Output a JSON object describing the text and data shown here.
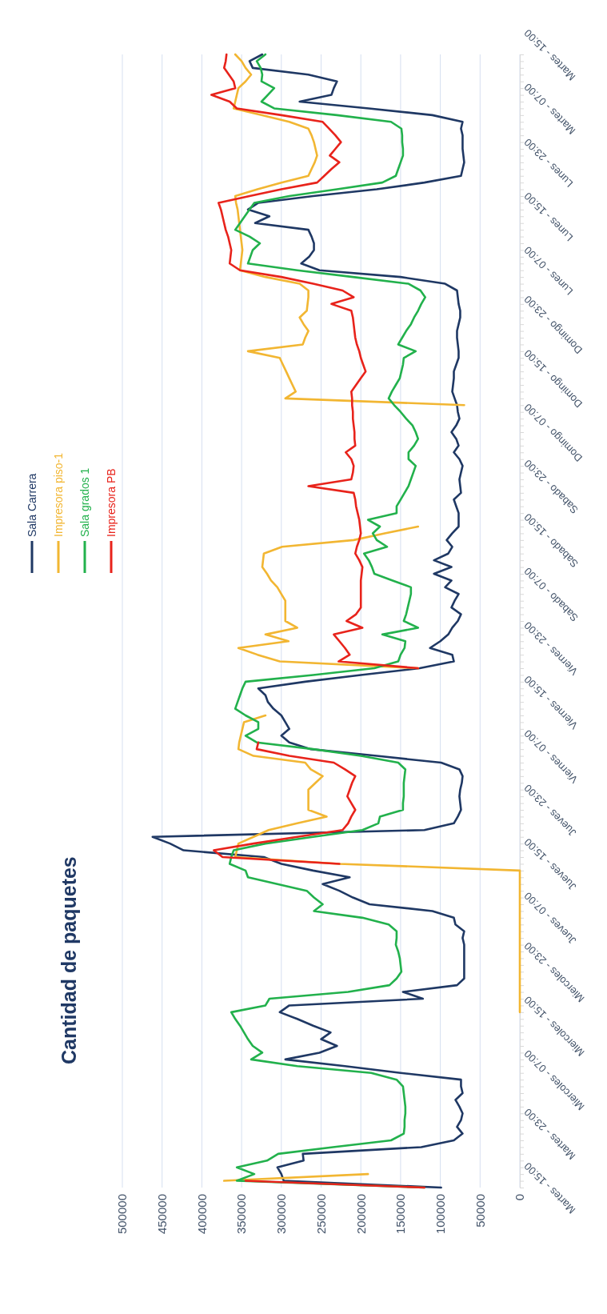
{
  "chart_data": {
    "type": "line",
    "orientation": "horizontal",
    "title": "Cantidad de paquetes",
    "legend": "left",
    "grid": "x",
    "xlim": [
      500000,
      0
    ],
    "xticks": [
      0,
      50000,
      100000,
      150000,
      200000,
      250000,
      300000,
      350000,
      400000,
      450000,
      500000
    ],
    "categories": [
      "Martes - 15:00",
      null,
      null,
      null,
      null,
      null,
      null,
      null,
      "Martes - 07:00",
      null,
      null,
      null,
      null,
      null,
      null,
      null,
      "Lunes - 23:00",
      null,
      null,
      null,
      null,
      null,
      null,
      null,
      "Lunes - 15:00",
      null,
      null,
      null,
      null,
      null,
      null,
      null,
      "Lunes - 07:00",
      null,
      null,
      null,
      null,
      null,
      null,
      null,
      "Domingo - 23:00",
      null,
      null,
      null,
      null,
      null,
      null,
      null,
      "Domingo - 15:00",
      null,
      null,
      null,
      null,
      null,
      null,
      null,
      "Domingo - 07:00",
      null,
      null,
      null,
      null,
      null,
      null,
      null,
      "Sabado - 23:00",
      null,
      null,
      null,
      null,
      null,
      null,
      null,
      "Sabado - 15:00",
      null,
      null,
      null,
      null,
      null,
      null,
      null,
      "Sabado - 07:00",
      null,
      null,
      null,
      null,
      null,
      null,
      null,
      "Viernes - 23:00",
      null,
      null,
      null,
      null,
      null,
      null,
      null,
      "Viernes - 15:00",
      null,
      null,
      null,
      null,
      null,
      null,
      null,
      "Viernes - 07:00",
      null,
      null,
      null,
      null,
      null,
      null,
      null,
      "Jueves - 23:00",
      null,
      null,
      null,
      null,
      null,
      null,
      null,
      "Jueves - 15:00",
      null,
      null,
      null,
      null,
      null,
      null,
      null,
      "Jueves - 07:00",
      null,
      null,
      null,
      null,
      null,
      null,
      null,
      "Miercoles - 23:00",
      null,
      null,
      null,
      null,
      null,
      null,
      null,
      "Miercoles - 15:00",
      null,
      null,
      null,
      null,
      null,
      null,
      null,
      "Miercoles - 07:00",
      null,
      null,
      null,
      null,
      null,
      null,
      null,
      "Martes - 23:00",
      null,
      null,
      null,
      null,
      null,
      null,
      null,
      "Martes - 15:00"
    ],
    "series": [
      {
        "name": "Sala Carrera",
        "color": "#1f3864",
        "values": [
          324000,
          340000,
          336000,
          266000,
          230000,
          234000,
          237000,
          277000,
          190000,
          110000,
          72000,
          74000,
          72000,
          72000,
          72000,
          71000,
          70000,
          72000,
          74000,
          120000,
          180000,
          260000,
          329000,
          342000,
          315000,
          333000,
          266000,
          262000,
          259000,
          259000,
          265000,
          275000,
          252000,
          150000,
          94000,
          79000,
          78000,
          77000,
          75000,
          75000,
          77000,
          79000,
          79000,
          78000,
          77000,
          77000,
          80000,
          83000,
          83000,
          84000,
          85000,
          82000,
          79000,
          78000,
          76000,
          80000,
          86000,
          80000,
          77000,
          83000,
          76000,
          72000,
          74000,
          76000,
          75000,
          74000,
          83000,
          80000,
          77000,
          77000,
          77000,
          85000,
          92000,
          85000,
          90000,
          108000,
          86000,
          108000,
          86000,
          94000,
          77000,
          82000,
          86000,
          74000,
          78000,
          85000,
          90000,
          100000,
          113000,
          85000,
          83000,
          126000,
          200000,
          270000,
          329000,
          320000,
          317000,
          310000,
          300000,
          295000,
          290000,
          300000,
          290000,
          263000,
          180000,
          99000,
          76000,
          72000,
          73000,
          75000,
          76000,
          75000,
          74000,
          78000,
          83000,
          120000,
          462000,
          440000,
          423000,
          322000,
          300000,
          260000,
          214000,
          248000,
          227000,
          210000,
          189000,
          110000,
          83000,
          81000,
          70000,
          72000,
          70000,
          70000,
          70000,
          70000,
          70000,
          70000,
          79000,
          147000,
          122000,
          290000,
          302000,
          280000,
          260000,
          238000,
          250000,
          230000,
          252000,
          295000,
          220000,
          150000,
          74000,
          74000,
          72000,
          81000,
          76000,
          72000,
          74000,
          79000,
          72000,
          83000,
          124000,
          273000,
          272000,
          305000,
          300000,
          297000,
          99000
        ]
      },
      {
        "name": "Impresora piso-1",
        "color": "#f2b632",
        "values": [
          358000,
          350000,
          345000,
          338000,
          345000,
          354000,
          356000,
          358000,
          360000,
          325000,
          290000,
          266000,
          262000,
          259000,
          257000,
          255000,
          258000,
          262000,
          266000,
          300000,
          330000,
          358000,
          357000,
          355000,
          354000,
          353000,
          352000,
          351000,
          350000,
          349000,
          350000,
          351000,
          352000,
          320000,
          277000,
          266000,
          266000,
          267000,
          268000,
          277000,
          272000,
          266000,
          270000,
          273000,
          342000,
          302000,
          298000,
          294000,
          290000,
          286000,
          282000,
          295000,
          70000,
          null,
          null,
          null,
          null,
          null,
          null,
          null,
          null,
          null,
          null,
          null,
          null,
          null,
          null,
          null,
          null,
          null,
          128000,
          170000,
          209000,
          299000,
          322000,
          323000,
          324000,
          318000,
          313000,
          305000,
          300000,
          295000,
          295000,
          295000,
          295000,
          280000,
          320000,
          291000,
          354000,
          330000,
          302000,
          128000,
          null,
          null,
          null,
          null,
          null,
          null,
          320000,
          347000,
          349000,
          351000,
          353000,
          354000,
          335000,
          270000,
          263000,
          248000,
          257000,
          266000,
          266000,
          266000,
          266000,
          243000,
          280000,
          316000,
          335000,
          354000,
          356000,
          358000,
          227000,
          0,
          0,
          0,
          0,
          0,
          0,
          0,
          0,
          0,
          0,
          0,
          0,
          0,
          0,
          0,
          0,
          0,
          0,
          0,
          0,
          0,
          0,
          null,
          null,
          null,
          null,
          null,
          null,
          null,
          null,
          null,
          null,
          null,
          null,
          null,
          null,
          null,
          null,
          null,
          null,
          null,
          null,
          null,
          null,
          null,
          191000,
          372000,
          null
        ]
      },
      {
        "name": "Sala grados 1",
        "color": "#22b14c",
        "values": [
          320000,
          331000,
          326000,
          324000,
          325000,
          309000,
          317000,
          325000,
          309000,
          230000,
          162000,
          149000,
          148000,
          148000,
          147000,
          147000,
          150000,
          153000,
          156000,
          173000,
          230000,
          290000,
          334000,
          340000,
          346000,
          352000,
          358000,
          340000,
          327000,
          336000,
          339000,
          342000,
          280000,
          210000,
          140000,
          125000,
          119000,
          124000,
          128000,
          133000,
          137000,
          143000,
          148000,
          153000,
          131000,
          146000,
          147000,
          149000,
          151000,
          156000,
          161000,
          165000,
          158000,
          150000,
          143000,
          135000,
          131000,
          128000,
          133000,
          140000,
          140000,
          131000,
          134000,
          137000,
          140000,
          145000,
          150000,
          155000,
          155000,
          191000,
          176000,
          185000,
          180000,
          167000,
          196000,
          190000,
          186000,
          183000,
          160000,
          137000,
          137000,
          139000,
          141000,
          143000,
          146000,
          128000,
          173000,
          144000,
          145000,
          150000,
          153000,
          183000,
          260000,
          345000,
          349000,
          352000,
          355000,
          358000,
          345000,
          329000,
          329000,
          345000,
          331000,
          260000,
          200000,
          153000,
          144000,
          145000,
          146000,
          146000,
          146000,
          147000,
          147000,
          176000,
          178000,
          198000,
          260000,
          320000,
          360000,
          363000,
          365000,
          345000,
          342000,
          305000,
          268000,
          259000,
          248000,
          259000,
          198000,
          165000,
          155000,
          155000,
          156000,
          153000,
          151000,
          150000,
          149000,
          155000,
          164000,
          216000,
          315000,
          320000,
          363000,
          358000,
          352000,
          347000,
          342000,
          336000,
          324000,
          338000,
          280000,
          187000,
          155000,
          147000,
          146000,
          145000,
          144000,
          144000,
          145000,
          145000,
          146000,
          162000,
          235000,
          304000,
          318000,
          356000,
          334000,
          356000,
          120000
        ]
      },
      {
        "name": "Impresora PB",
        "color": "#e8231b",
        "values": [
          369000,
          370000,
          372000,
          366000,
          360000,
          358000,
          388000,
          365000,
          356000,
          300000,
          248000,
          240000,
          232000,
          225000,
          232000,
          239000,
          227000,
          237000,
          246000,
          255000,
          300000,
          340000,
          379000,
          376000,
          374000,
          372000,
          370000,
          367000,
          365000,
          363000,
          364000,
          365000,
          352000,
          300000,
          260000,
          223000,
          209000,
          237000,
          212000,
          210000,
          209000,
          208000,
          207000,
          205000,
          202000,
          200000,
          197000,
          194000,
          200000,
          206000,
          212000,
          211000,
          211000,
          210000,
          210000,
          209000,
          208000,
          208000,
          207000,
          219000,
          212000,
          209000,
          210000,
          212000,
          266000,
          209000,
          207000,
          206000,
          204000,
          202000,
          201000,
          200000,
          202000,
          205000,
          207000,
          202000,
          198000,
          199000,
          200000,
          200000,
          200000,
          200000,
          200000,
          206000,
          218000,
          198000,
          234000,
          227000,
          220000,
          214000,
          228000,
          128000,
          null,
          null,
          null,
          null,
          null,
          null,
          null,
          null,
          null,
          null,
          329000,
          331000,
          290000,
          234000,
          220000,
          207000,
          211000,
          214000,
          217000,
          212000,
          207000,
          212000,
          216000,
          223000,
          280000,
          335000,
          385000,
          374000,
          227000,
          null,
          null,
          null,
          null,
          null,
          null,
          null,
          null,
          null,
          null,
          null,
          null,
          null,
          null,
          null,
          null,
          null,
          null,
          null,
          null,
          null,
          null,
          null,
          null,
          null,
          null,
          null,
          null,
          null,
          null,
          null,
          null,
          null,
          null,
          null,
          null,
          null,
          null,
          null,
          null,
          null,
          null,
          null,
          null,
          null,
          null,
          345000,
          120000
        ]
      }
    ]
  }
}
